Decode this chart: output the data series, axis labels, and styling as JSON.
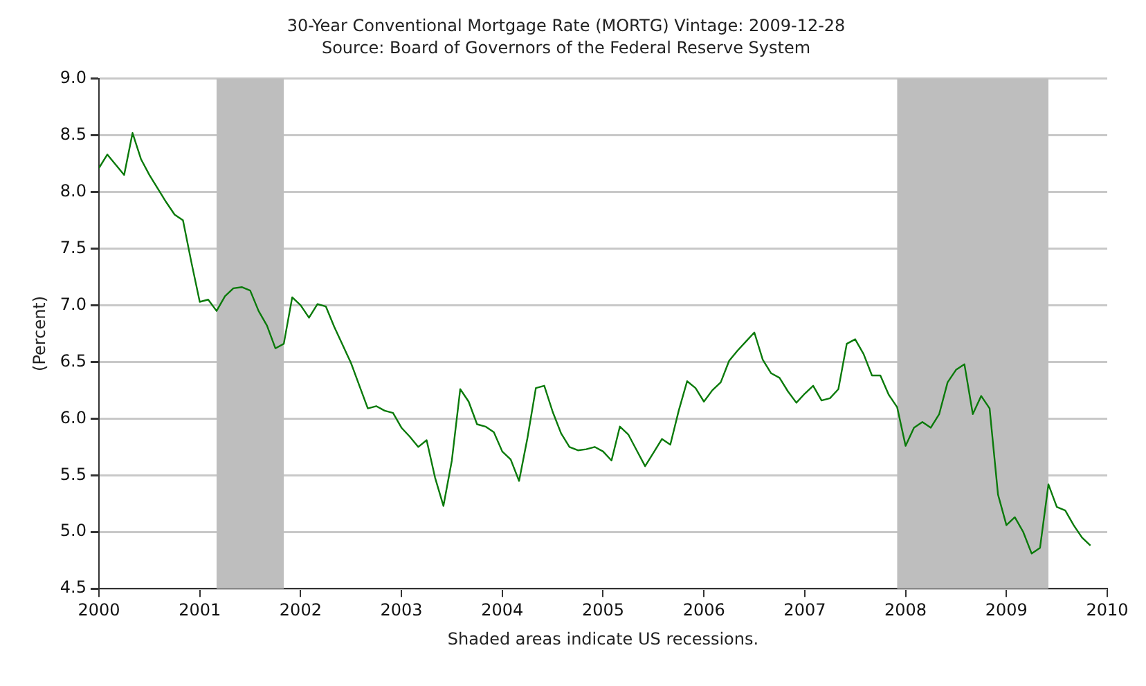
{
  "chart_data": {
    "type": "line",
    "title": "30-Year Conventional Mortgage Rate (MORTG) Vintage: 2009-12-28",
    "subtitle": "Source: Board of Governors of the Federal Reserve System",
    "ylabel": "(Percent)",
    "annotations": [
      "Shaded areas indicate US recessions."
    ],
    "x": [
      "2000-01",
      "2000-02",
      "2000-03",
      "2000-04",
      "2000-05",
      "2000-06",
      "2000-07",
      "2000-08",
      "2000-09",
      "2000-10",
      "2000-11",
      "2000-12",
      "2001-01",
      "2001-02",
      "2001-03",
      "2001-04",
      "2001-05",
      "2001-06",
      "2001-07",
      "2001-08",
      "2001-09",
      "2001-10",
      "2001-11",
      "2001-12",
      "2002-01",
      "2002-02",
      "2002-03",
      "2002-04",
      "2002-05",
      "2002-06",
      "2002-07",
      "2002-08",
      "2002-09",
      "2002-10",
      "2002-11",
      "2002-12",
      "2003-01",
      "2003-02",
      "2003-03",
      "2003-04",
      "2003-05",
      "2003-06",
      "2003-07",
      "2003-08",
      "2003-09",
      "2003-10",
      "2003-11",
      "2003-12",
      "2004-01",
      "2004-02",
      "2004-03",
      "2004-04",
      "2004-05",
      "2004-06",
      "2004-07",
      "2004-08",
      "2004-09",
      "2004-10",
      "2004-11",
      "2004-12",
      "2005-01",
      "2005-02",
      "2005-03",
      "2005-04",
      "2005-05",
      "2005-06",
      "2005-07",
      "2005-08",
      "2005-09",
      "2005-10",
      "2005-11",
      "2005-12",
      "2006-01",
      "2006-02",
      "2006-03",
      "2006-04",
      "2006-05",
      "2006-06",
      "2006-07",
      "2006-08",
      "2006-09",
      "2006-10",
      "2006-11",
      "2006-12",
      "2007-01",
      "2007-02",
      "2007-03",
      "2007-04",
      "2007-05",
      "2007-06",
      "2007-07",
      "2007-08",
      "2007-09",
      "2007-10",
      "2007-11",
      "2007-12",
      "2008-01",
      "2008-02",
      "2008-03",
      "2008-04",
      "2008-05",
      "2008-06",
      "2008-07",
      "2008-08",
      "2008-09",
      "2008-10",
      "2008-11",
      "2008-12",
      "2009-01",
      "2009-02",
      "2009-03",
      "2009-04",
      "2009-05",
      "2009-06",
      "2009-07",
      "2009-08",
      "2009-09",
      "2009-10",
      "2009-11"
    ],
    "series": [
      {
        "color": "#0a7a0a",
        "values": [
          8.21,
          8.33,
          8.24,
          8.15,
          8.52,
          8.29,
          8.15,
          8.03,
          7.91,
          7.8,
          7.75,
          7.38,
          7.03,
          7.05,
          6.95,
          7.08,
          7.15,
          7.16,
          7.13,
          6.95,
          6.82,
          6.62,
          6.66,
          7.07,
          7.0,
          6.89,
          7.01,
          6.99,
          6.81,
          6.65,
          6.49,
          6.29,
          6.09,
          6.11,
          6.07,
          6.05,
          5.92,
          5.84,
          5.75,
          5.81,
          5.48,
          5.23,
          5.63,
          6.26,
          6.15,
          5.95,
          5.93,
          5.88,
          5.71,
          5.64,
          5.45,
          5.83,
          6.27,
          6.29,
          6.06,
          5.87,
          5.75,
          5.72,
          5.73,
          5.75,
          5.71,
          5.63,
          5.93,
          5.86,
          5.72,
          5.58,
          5.7,
          5.82,
          5.77,
          6.07,
          6.33,
          6.27,
          6.15,
          6.25,
          6.32,
          6.51,
          6.6,
          6.68,
          6.76,
          6.52,
          6.4,
          6.36,
          6.24,
          6.14,
          6.22,
          6.29,
          6.16,
          6.18,
          6.26,
          6.66,
          6.7,
          6.57,
          6.38,
          6.38,
          6.21,
          6.1,
          5.76,
          5.92,
          5.97,
          5.92,
          6.04,
          6.32,
          6.43,
          6.48,
          6.04,
          6.2,
          6.09,
          5.33,
          5.06,
          5.13,
          5.0,
          4.81,
          4.86,
          5.42,
          5.22,
          5.19,
          5.06,
          4.95,
          4.88
        ]
      }
    ],
    "xlim": [
      "2000",
      "2010"
    ],
    "xticks": [
      "2000",
      "2001",
      "2002",
      "2003",
      "2004",
      "2005",
      "2006",
      "2007",
      "2008",
      "2009",
      "2010"
    ],
    "ylim": [
      4.5,
      9.0
    ],
    "yticks": [
      {
        "value": 4.5,
        "label": "4.5"
      },
      {
        "value": 5,
        "label": "5.0"
      },
      {
        "value": 5.5,
        "label": "5.5"
      },
      {
        "value": 6,
        "label": "6.0"
      },
      {
        "value": 6.5,
        "label": "6.5"
      },
      {
        "value": 7,
        "label": "7.0"
      },
      {
        "value": 7.5,
        "label": "7.5"
      },
      {
        "value": 8,
        "label": "8.0"
      },
      {
        "value": 8.5,
        "label": "8.5"
      },
      {
        "value": 9,
        "label": "9.0"
      }
    ],
    "bands": [
      {
        "axis": "x",
        "from": "2001-03",
        "to": "2001-11",
        "color": "#bebebe"
      },
      {
        "axis": "x",
        "from": "2007-12",
        "to": "2009-06",
        "color": "#bebebe"
      }
    ],
    "grid": "y",
    "legend": false,
    "marker": "none",
    "line_style": "solid"
  }
}
